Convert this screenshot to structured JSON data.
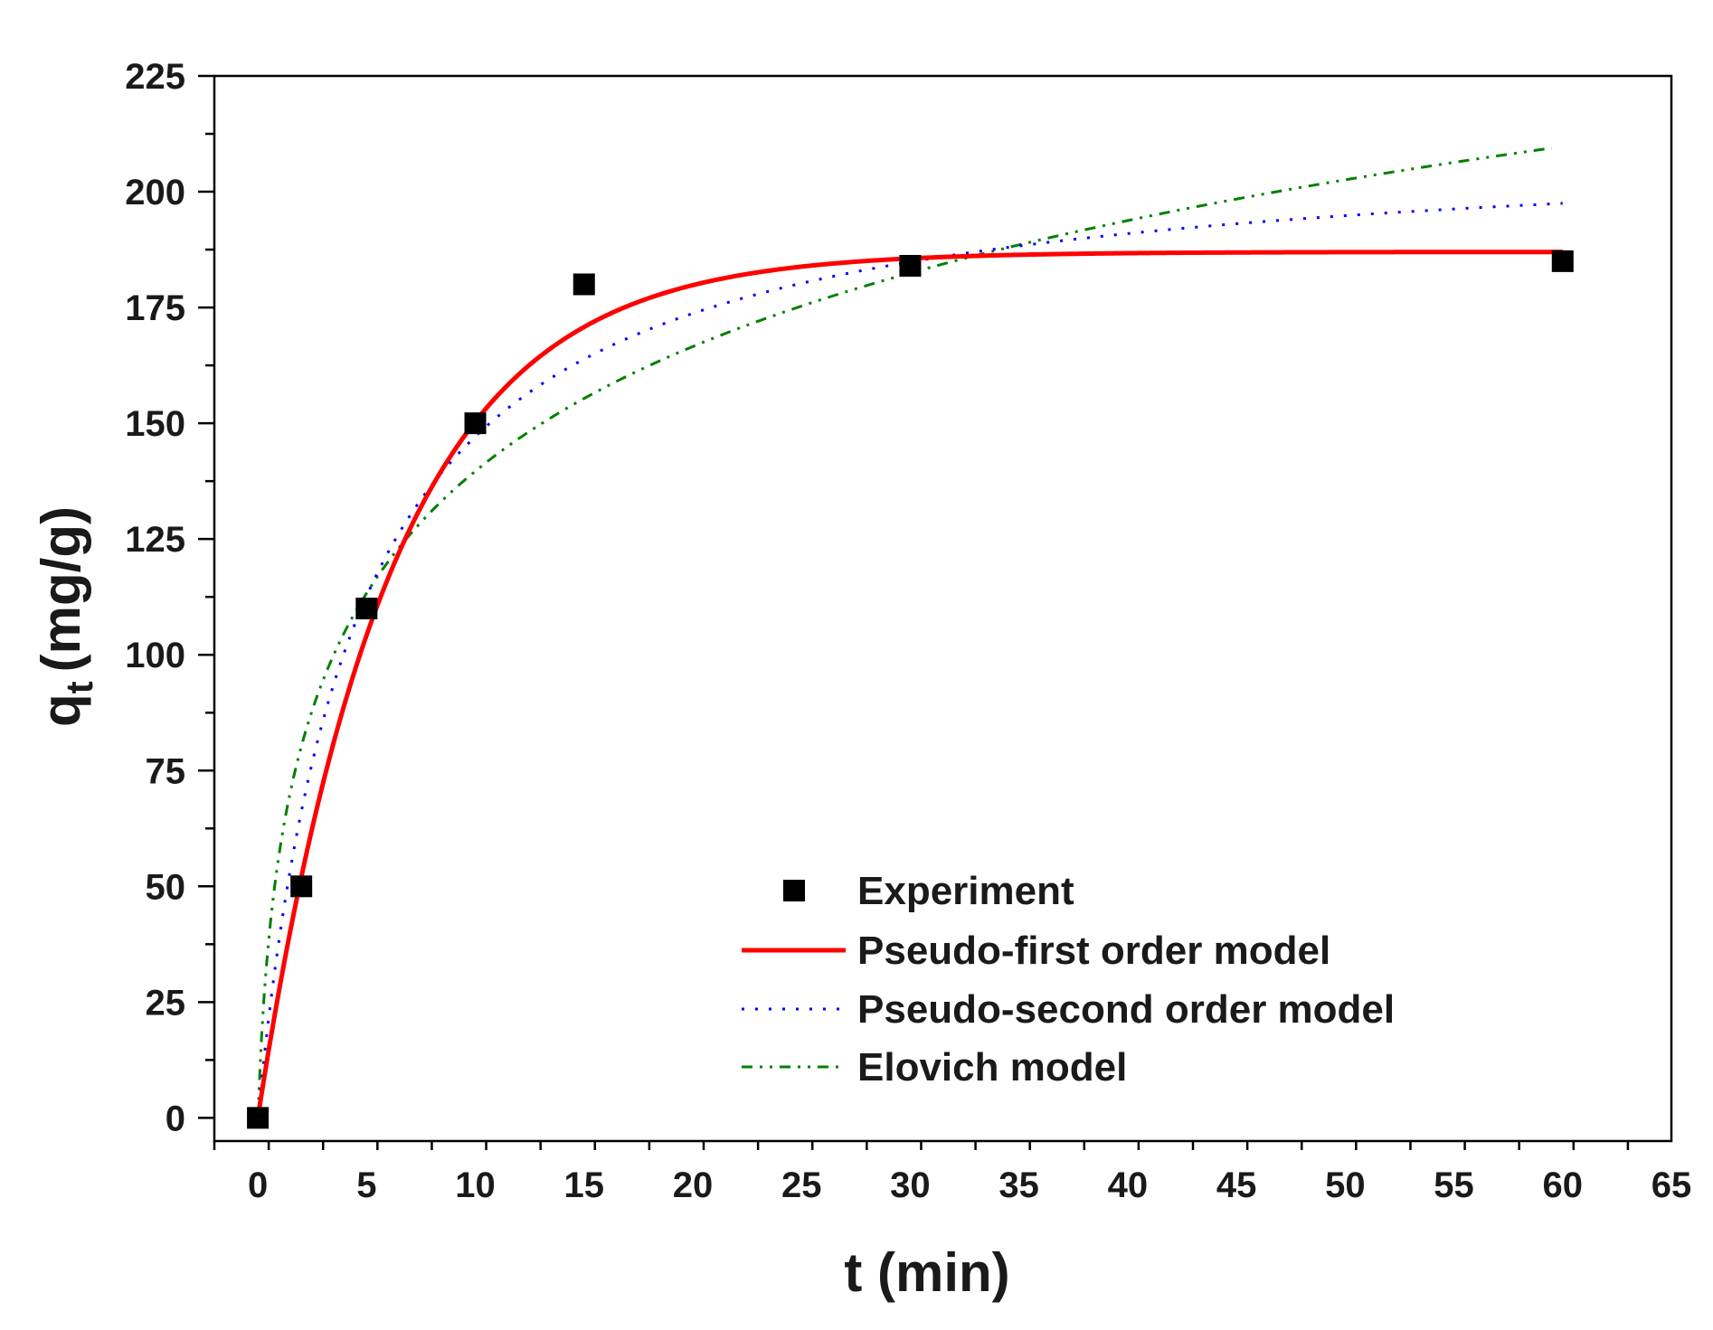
{
  "chart_data": {
    "type": "scatter",
    "xlabel": "t (min)",
    "ylabel_main": "q",
    "ylabel_sub": "t",
    "ylabel_unit": "(mg/g)",
    "xlim": [
      -2,
      65
    ],
    "ylim": [
      -5,
      225
    ],
    "xticks": [
      0,
      5,
      10,
      15,
      20,
      25,
      30,
      35,
      40,
      45,
      50,
      55,
      60,
      65
    ],
    "yticks": [
      0,
      25,
      50,
      75,
      100,
      125,
      150,
      175,
      200,
      225
    ],
    "grid": false,
    "legend_position": "bottom-right",
    "series": [
      {
        "name": "Experiment",
        "kind": "scatter",
        "color": "#000000",
        "x": [
          0,
          2,
          5,
          10,
          15,
          30,
          60
        ],
        "y": [
          0,
          50,
          110,
          150,
          180,
          184,
          185
        ]
      },
      {
        "name": "Pseudo-first order model",
        "kind": "line",
        "style": "solid",
        "color": "#ff0000",
        "model": "qe*(1-exp(-k1*t))",
        "params": {
          "qe": 187,
          "k1": 0.163
        },
        "x_range": [
          0,
          60
        ]
      },
      {
        "name": "Pseudo-second order model",
        "kind": "line",
        "style": "dotted",
        "color": "#0000ff",
        "model": "k2*qe^2*t/(1+k2*qe*t)",
        "params": {
          "qe": 212,
          "k2": 0.00107
        },
        "x_range": [
          0,
          60
        ]
      },
      {
        "name": "Elovich model",
        "kind": "line",
        "style": "dashdotdot",
        "color": "#008000",
        "model": "(1/b)*ln(1+a*b*t)",
        "params": {
          "a": 130,
          "b": 0.0252
        },
        "x_range": [
          0,
          59.5
        ]
      }
    ]
  }
}
